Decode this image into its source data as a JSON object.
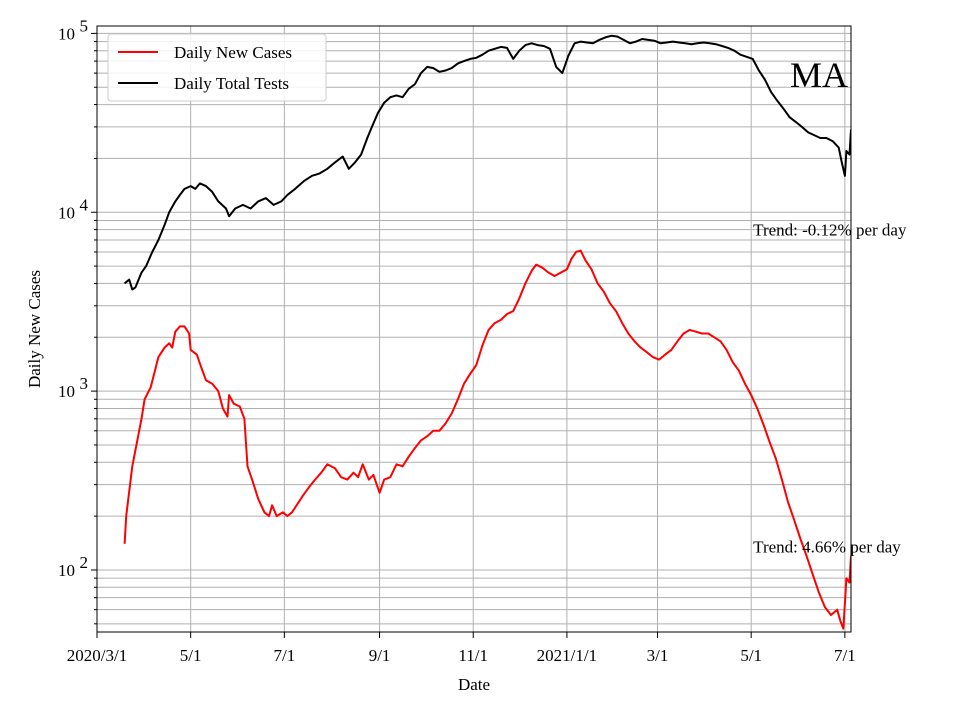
{
  "chart_data": {
    "type": "line",
    "state_label": "MA",
    "xlabel": "Date",
    "ylabel": "Daily New Cases",
    "y_scale": "log",
    "ylim": [
      45,
      110000
    ],
    "xlim": [
      "2020-03-01",
      "2021-07-05"
    ],
    "grid": true,
    "legend_position": "top-left",
    "x_ticks": [
      {
        "date": "2020-03-01",
        "label": "2020/3/1"
      },
      {
        "date": "2020-05-01",
        "label": "5/1"
      },
      {
        "date": "2020-07-01",
        "label": "7/1"
      },
      {
        "date": "2020-09-01",
        "label": "9/1"
      },
      {
        "date": "2020-11-01",
        "label": "11/1"
      },
      {
        "date": "2021-01-01",
        "label": "2021/1/1"
      },
      {
        "date": "2021-03-01",
        "label": "3/1"
      },
      {
        "date": "2021-05-01",
        "label": "5/1"
      },
      {
        "date": "2021-07-01",
        "label": "7/1"
      }
    ],
    "y_ticks": [
      {
        "value": 100,
        "base": "10",
        "exp": "2"
      },
      {
        "value": 1000,
        "base": "10",
        "exp": "3"
      },
      {
        "value": 10000,
        "base": "10",
        "exp": "4"
      },
      {
        "value": 100000,
        "base": "10",
        "exp": "5"
      }
    ],
    "annotations": [
      {
        "text": "Trend: -0.12% per day",
        "date": "2021-05-01",
        "value": 8000
      },
      {
        "text": "Trend: 4.66% per day",
        "date": "2021-05-01",
        "value": 135
      }
    ],
    "series": [
      {
        "name": "Daily New Cases",
        "color": "#ff0000",
        "points": [
          [
            "2020-03-19",
            140
          ],
          [
            "2020-03-20",
            200
          ],
          [
            "2020-03-24",
            380
          ],
          [
            "2020-03-30",
            700
          ],
          [
            "2020-04-01",
            900
          ],
          [
            "2020-04-05",
            1050
          ],
          [
            "2020-04-10",
            1550
          ],
          [
            "2020-04-14",
            1750
          ],
          [
            "2020-04-17",
            1850
          ],
          [
            "2020-04-19",
            1750
          ],
          [
            "2020-04-21",
            2150
          ],
          [
            "2020-04-24",
            2300
          ],
          [
            "2020-04-27",
            2300
          ],
          [
            "2020-04-30",
            2100
          ],
          [
            "2020-05-01",
            1700
          ],
          [
            "2020-05-05",
            1600
          ],
          [
            "2020-05-08",
            1350
          ],
          [
            "2020-05-11",
            1150
          ],
          [
            "2020-05-15",
            1100
          ],
          [
            "2020-05-19",
            1000
          ],
          [
            "2020-05-22",
            800
          ],
          [
            "2020-05-25",
            720
          ],
          [
            "2020-05-26",
            950
          ],
          [
            "2020-05-29",
            850
          ],
          [
            "2020-06-02",
            820
          ],
          [
            "2020-06-05",
            700
          ],
          [
            "2020-06-07",
            380
          ],
          [
            "2020-06-10",
            320
          ],
          [
            "2020-06-14",
            250
          ],
          [
            "2020-06-18",
            210
          ],
          [
            "2020-06-21",
            200
          ],
          [
            "2020-06-23",
            230
          ],
          [
            "2020-06-26",
            200
          ],
          [
            "2020-06-30",
            210
          ],
          [
            "2020-07-03",
            200
          ],
          [
            "2020-07-06",
            210
          ],
          [
            "2020-07-09",
            230
          ],
          [
            "2020-07-13",
            260
          ],
          [
            "2020-07-17",
            290
          ],
          [
            "2020-07-21",
            320
          ],
          [
            "2020-07-25",
            350
          ],
          [
            "2020-07-29",
            390
          ],
          [
            "2020-08-03",
            370
          ],
          [
            "2020-08-07",
            330
          ],
          [
            "2020-08-11",
            320
          ],
          [
            "2020-08-15",
            350
          ],
          [
            "2020-08-18",
            330
          ],
          [
            "2020-08-21",
            390
          ],
          [
            "2020-08-25",
            320
          ],
          [
            "2020-08-28",
            340
          ],
          [
            "2020-09-01",
            270
          ],
          [
            "2020-09-04",
            320
          ],
          [
            "2020-09-08",
            330
          ],
          [
            "2020-09-12",
            390
          ],
          [
            "2020-09-16",
            380
          ],
          [
            "2020-09-20",
            430
          ],
          [
            "2020-09-24",
            480
          ],
          [
            "2020-09-28",
            530
          ],
          [
            "2020-10-02",
            560
          ],
          [
            "2020-10-06",
            600
          ],
          [
            "2020-10-10",
            600
          ],
          [
            "2020-10-14",
            660
          ],
          [
            "2020-10-18",
            750
          ],
          [
            "2020-10-22",
            900
          ],
          [
            "2020-10-26",
            1100
          ],
          [
            "2020-10-30",
            1250
          ],
          [
            "2020-11-03",
            1400
          ],
          [
            "2020-11-07",
            1800
          ],
          [
            "2020-11-11",
            2200
          ],
          [
            "2020-11-15",
            2400
          ],
          [
            "2020-11-19",
            2500
          ],
          [
            "2020-11-23",
            2700
          ],
          [
            "2020-11-27",
            2800
          ],
          [
            "2020-12-01",
            3300
          ],
          [
            "2020-12-05",
            4000
          ],
          [
            "2020-12-09",
            4700
          ],
          [
            "2020-12-12",
            5100
          ],
          [
            "2020-12-16",
            4900
          ],
          [
            "2020-12-20",
            4600
          ],
          [
            "2020-12-24",
            4400
          ],
          [
            "2020-12-28",
            4600
          ],
          [
            "2021-01-01",
            4800
          ],
          [
            "2021-01-04",
            5500
          ],
          [
            "2021-01-07",
            6000
          ],
          [
            "2021-01-10",
            6100
          ],
          [
            "2021-01-13",
            5400
          ],
          [
            "2021-01-17",
            4800
          ],
          [
            "2021-01-21",
            4000
          ],
          [
            "2021-01-25",
            3600
          ],
          [
            "2021-01-29",
            3100
          ],
          [
            "2021-02-02",
            2800
          ],
          [
            "2021-02-06",
            2400
          ],
          [
            "2021-02-10",
            2100
          ],
          [
            "2021-02-14",
            1900
          ],
          [
            "2021-02-18",
            1750
          ],
          [
            "2021-02-22",
            1650
          ],
          [
            "2021-02-26",
            1550
          ],
          [
            "2021-03-02",
            1500
          ],
          [
            "2021-03-06",
            1600
          ],
          [
            "2021-03-10",
            1700
          ],
          [
            "2021-03-14",
            1900
          ],
          [
            "2021-03-18",
            2100
          ],
          [
            "2021-03-22",
            2200
          ],
          [
            "2021-03-26",
            2150
          ],
          [
            "2021-03-30",
            2100
          ],
          [
            "2021-04-03",
            2100
          ],
          [
            "2021-04-07",
            2000
          ],
          [
            "2021-04-11",
            1900
          ],
          [
            "2021-04-15",
            1700
          ],
          [
            "2021-04-19",
            1450
          ],
          [
            "2021-04-23",
            1300
          ],
          [
            "2021-04-27",
            1100
          ],
          [
            "2021-05-01",
            950
          ],
          [
            "2021-05-05",
            800
          ],
          [
            "2021-05-09",
            650
          ],
          [
            "2021-05-13",
            520
          ],
          [
            "2021-05-17",
            420
          ],
          [
            "2021-05-21",
            320
          ],
          [
            "2021-05-25",
            240
          ],
          [
            "2021-05-29",
            190
          ],
          [
            "2021-06-02",
            150
          ],
          [
            "2021-06-06",
            120
          ],
          [
            "2021-06-10",
            95
          ],
          [
            "2021-06-14",
            75
          ],
          [
            "2021-06-18",
            62
          ],
          [
            "2021-06-22",
            56
          ],
          [
            "2021-06-26",
            60
          ],
          [
            "2021-06-28",
            52
          ],
          [
            "2021-06-30",
            47
          ],
          [
            "2021-07-01",
            65
          ],
          [
            "2021-07-02",
            90
          ],
          [
            "2021-07-04",
            85
          ],
          [
            "2021-07-05",
            120
          ]
        ]
      },
      {
        "name": "Daily Total Tests",
        "color": "#000000",
        "points": [
          [
            "2020-03-19",
            4000
          ],
          [
            "2020-03-22",
            4200
          ],
          [
            "2020-03-24",
            3700
          ],
          [
            "2020-03-26",
            3800
          ],
          [
            "2020-03-30",
            4600
          ],
          [
            "2020-04-02",
            5000
          ],
          [
            "2020-04-06",
            6000
          ],
          [
            "2020-04-10",
            7000
          ],
          [
            "2020-04-14",
            8500
          ],
          [
            "2020-04-17",
            10000
          ],
          [
            "2020-04-21",
            11500
          ],
          [
            "2020-04-24",
            12500
          ],
          [
            "2020-04-27",
            13500
          ],
          [
            "2020-05-01",
            14000
          ],
          [
            "2020-05-04",
            13500
          ],
          [
            "2020-05-07",
            14500
          ],
          [
            "2020-05-11",
            14000
          ],
          [
            "2020-05-15",
            13000
          ],
          [
            "2020-05-19",
            11500
          ],
          [
            "2020-05-24",
            10500
          ],
          [
            "2020-05-26",
            9500
          ],
          [
            "2020-05-30",
            10500
          ],
          [
            "2020-06-04",
            11000
          ],
          [
            "2020-06-09",
            10500
          ],
          [
            "2020-06-14",
            11500
          ],
          [
            "2020-06-19",
            12000
          ],
          [
            "2020-06-24",
            11000
          ],
          [
            "2020-06-29",
            11500
          ],
          [
            "2020-07-03",
            12500
          ],
          [
            "2020-07-08",
            13500
          ],
          [
            "2020-07-14",
            15000
          ],
          [
            "2020-07-19",
            16000
          ],
          [
            "2020-07-24",
            16500
          ],
          [
            "2020-07-29",
            17500
          ],
          [
            "2020-08-03",
            19000
          ],
          [
            "2020-08-08",
            20500
          ],
          [
            "2020-08-12",
            17500
          ],
          [
            "2020-08-16",
            19000
          ],
          [
            "2020-08-20",
            21000
          ],
          [
            "2020-08-24",
            26000
          ],
          [
            "2020-08-27",
            30000
          ],
          [
            "2020-08-31",
            36000
          ],
          [
            "2020-09-04",
            41000
          ],
          [
            "2020-09-08",
            44000
          ],
          [
            "2020-09-12",
            45000
          ],
          [
            "2020-09-16",
            44000
          ],
          [
            "2020-09-20",
            49000
          ],
          [
            "2020-09-24",
            52000
          ],
          [
            "2020-09-28",
            60000
          ],
          [
            "2020-10-02",
            65000
          ],
          [
            "2020-10-06",
            64000
          ],
          [
            "2020-10-10",
            61000
          ],
          [
            "2020-10-14",
            62000
          ],
          [
            "2020-10-18",
            64000
          ],
          [
            "2020-10-22",
            68000
          ],
          [
            "2020-10-26",
            70000
          ],
          [
            "2020-10-30",
            72000
          ],
          [
            "2020-11-03",
            73000
          ],
          [
            "2020-11-07",
            76000
          ],
          [
            "2020-11-11",
            80000
          ],
          [
            "2020-11-15",
            82000
          ],
          [
            "2020-11-19",
            84000
          ],
          [
            "2020-11-23",
            83000
          ],
          [
            "2020-11-27",
            72000
          ],
          [
            "2020-12-01",
            80000
          ],
          [
            "2020-12-05",
            86000
          ],
          [
            "2020-12-09",
            88000
          ],
          [
            "2020-12-13",
            86000
          ],
          [
            "2020-12-17",
            85000
          ],
          [
            "2020-12-21",
            82000
          ],
          [
            "2020-12-25",
            65000
          ],
          [
            "2020-12-29",
            60000
          ],
          [
            "2021-01-02",
            75000
          ],
          [
            "2021-01-06",
            88000
          ],
          [
            "2021-01-10",
            90000
          ],
          [
            "2021-01-14",
            89000
          ],
          [
            "2021-01-18",
            88000
          ],
          [
            "2021-01-22",
            92000
          ],
          [
            "2021-01-26",
            95000
          ],
          [
            "2021-01-30",
            97000
          ],
          [
            "2021-02-03",
            96000
          ],
          [
            "2021-02-07",
            92000
          ],
          [
            "2021-02-11",
            88000
          ],
          [
            "2021-02-15",
            90000
          ],
          [
            "2021-02-19",
            93000
          ],
          [
            "2021-02-23",
            92000
          ],
          [
            "2021-02-27",
            91000
          ],
          [
            "2021-03-03",
            88000
          ],
          [
            "2021-03-07",
            89000
          ],
          [
            "2021-03-11",
            90000
          ],
          [
            "2021-03-15",
            89000
          ],
          [
            "2021-03-19",
            88000
          ],
          [
            "2021-03-23",
            87000
          ],
          [
            "2021-03-27",
            88000
          ],
          [
            "2021-03-31",
            89000
          ],
          [
            "2021-04-04",
            88000
          ],
          [
            "2021-04-08",
            87000
          ],
          [
            "2021-04-12",
            85000
          ],
          [
            "2021-04-16",
            83000
          ],
          [
            "2021-04-20",
            80000
          ],
          [
            "2021-04-24",
            76000
          ],
          [
            "2021-04-28",
            74000
          ],
          [
            "2021-05-02",
            72000
          ],
          [
            "2021-05-06",
            62000
          ],
          [
            "2021-05-10",
            55000
          ],
          [
            "2021-05-14",
            47000
          ],
          [
            "2021-05-18",
            42000
          ],
          [
            "2021-05-22",
            38000
          ],
          [
            "2021-05-26",
            34000
          ],
          [
            "2021-05-30",
            32000
          ],
          [
            "2021-06-03",
            30000
          ],
          [
            "2021-06-07",
            28000
          ],
          [
            "2021-06-11",
            27000
          ],
          [
            "2021-06-15",
            26000
          ],
          [
            "2021-06-19",
            26000
          ],
          [
            "2021-06-23",
            25000
          ],
          [
            "2021-06-27",
            23000
          ],
          [
            "2021-06-29",
            19000
          ],
          [
            "2021-07-01",
            16000
          ],
          [
            "2021-07-02",
            22000
          ],
          [
            "2021-07-04",
            21000
          ],
          [
            "2021-07-05",
            29000
          ]
        ]
      }
    ]
  }
}
